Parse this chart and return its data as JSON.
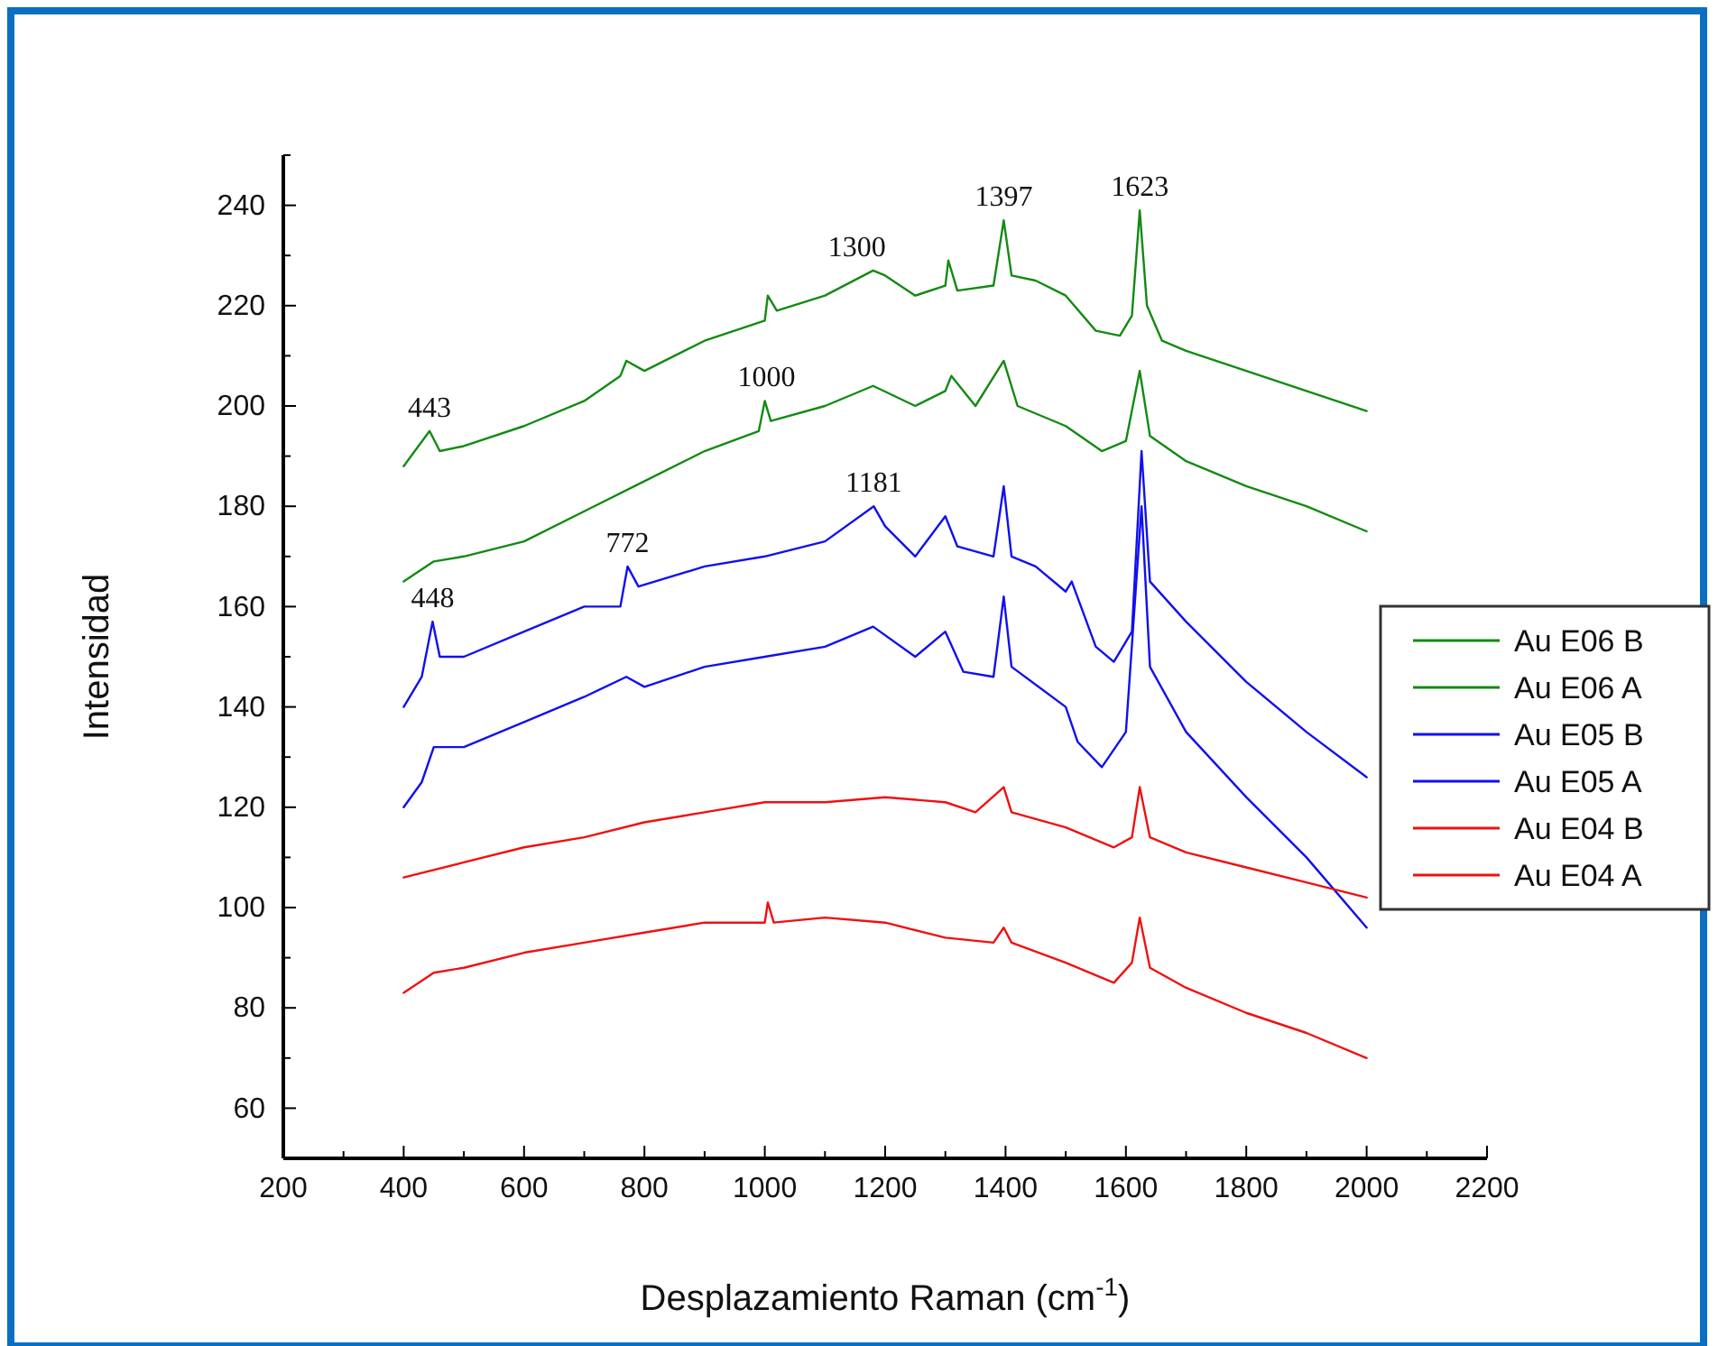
{
  "chart_data": {
    "type": "line",
    "xlabel": "Desplazamiento Raman (cm$^{-1}$)",
    "ylabel": "Intensidad",
    "xlim": [
      200,
      2200
    ],
    "ylim": [
      50,
      250
    ],
    "xticks": [
      200,
      {
        "value": 300,
        "label": null
      },
      400,
      {
        "value": 500,
        "label": null
      },
      600,
      {
        "value": 700,
        "label": null
      },
      800,
      {
        "value": 900,
        "label": null
      },
      1000,
      {
        "value": 1100,
        "label": null
      },
      1200,
      {
        "value": 1300,
        "label": null
      },
      1400,
      {
        "value": 1500,
        "label": null
      },
      1600,
      {
        "value": 1700,
        "label": null
      },
      1800,
      {
        "value": 1900,
        "label": null
      },
      2000,
      {
        "value": 2100,
        "label": null
      },
      2200
    ],
    "yticks": [
      {
        "value": 50,
        "label": null
      },
      60,
      {
        "value": 70,
        "label": null
      },
      80,
      {
        "value": 90,
        "label": null
      },
      100,
      {
        "value": 110,
        "label": null
      },
      120,
      {
        "value": 130,
        "label": null
      },
      140,
      {
        "value": 150,
        "label": null
      },
      160,
      {
        "value": 170,
        "label": null
      },
      180,
      {
        "value": 190,
        "label": null
      },
      200,
      {
        "value": 210,
        "label": null
      },
      220,
      {
        "value": 230,
        "label": null
      },
      240,
      {
        "value": 250,
        "label": null
      }
    ],
    "grid": false,
    "legend": "right",
    "line_style": "solid",
    "marker": "none",
    "series": [
      {
        "name": "Au E06 B",
        "color": "#138a13",
        "x": [
          400,
          443,
          460,
          500,
          600,
          700,
          760,
          770,
          800,
          900,
          1000,
          1005,
          1020,
          1100,
          1180,
          1200,
          1250,
          1300,
          1305,
          1320,
          1380,
          1397,
          1410,
          1450,
          1500,
          1550,
          1590,
          1610,
          1623,
          1635,
          1660,
          1700,
          1800,
          1900,
          2000
        ],
        "values": [
          188,
          195,
          191,
          192,
          196,
          201,
          206,
          209,
          207,
          213,
          217,
          222,
          219,
          222,
          227,
          226,
          222,
          224,
          229,
          223,
          224,
          237,
          226,
          225,
          222,
          215,
          214,
          218,
          239,
          220,
          213,
          211,
          207,
          203,
          199
        ]
      },
      {
        "name": "Au E06 A",
        "color": "#138a13",
        "x": [
          400,
          450,
          500,
          600,
          700,
          800,
          900,
          990,
          1000,
          1010,
          1100,
          1180,
          1250,
          1300,
          1310,
          1350,
          1397,
          1420,
          1500,
          1560,
          1600,
          1623,
          1640,
          1700,
          1800,
          1900,
          2000
        ],
        "values": [
          165,
          169,
          170,
          173,
          179,
          185,
          191,
          195,
          201,
          197,
          200,
          204,
          200,
          203,
          206,
          200,
          209,
          200,
          196,
          191,
          193,
          207,
          194,
          189,
          184,
          180,
          175
        ]
      },
      {
        "name": "Au E05 B",
        "color": "#1010f0",
        "x": [
          400,
          430,
          448,
          460,
          500,
          600,
          700,
          760,
          772,
          790,
          900,
          1000,
          1100,
          1181,
          1200,
          1250,
          1300,
          1320,
          1380,
          1397,
          1410,
          1450,
          1500,
          1510,
          1550,
          1580,
          1610,
          1626,
          1640,
          1700,
          1800,
          1900,
          2000
        ],
        "values": [
          140,
          146,
          157,
          150,
          150,
          155,
          160,
          160,
          168,
          164,
          168,
          170,
          173,
          180,
          176,
          170,
          178,
          172,
          170,
          184,
          170,
          168,
          163,
          165,
          152,
          149,
          155,
          191,
          165,
          157,
          145,
          135,
          126
        ]
      },
      {
        "name": "Au E05 A",
        "color": "#1010f0",
        "x": [
          400,
          430,
          450,
          500,
          600,
          700,
          770,
          800,
          900,
          1000,
          1100,
          1180,
          1250,
          1300,
          1330,
          1380,
          1397,
          1410,
          1500,
          1520,
          1560,
          1600,
          1626,
          1640,
          1700,
          1800,
          1900,
          2000
        ],
        "values": [
          120,
          125,
          132,
          132,
          137,
          142,
          146,
          144,
          148,
          150,
          152,
          156,
          150,
          155,
          147,
          146,
          162,
          148,
          140,
          133,
          128,
          135,
          180,
          148,
          135,
          122,
          110,
          96
        ]
      },
      {
        "name": "Au E04 B",
        "color": "#f01010",
        "x": [
          400,
          500,
          600,
          700,
          800,
          900,
          1000,
          1100,
          1200,
          1300,
          1350,
          1397,
          1410,
          1500,
          1580,
          1610,
          1623,
          1640,
          1700,
          1800,
          1900,
          2000
        ],
        "values": [
          106,
          109,
          112,
          114,
          117,
          119,
          121,
          121,
          122,
          121,
          119,
          124,
          119,
          116,
          112,
          114,
          124,
          114,
          111,
          108,
          105,
          102
        ]
      },
      {
        "name": "Au E04 A",
        "color": "#f01010",
        "x": [
          400,
          450,
          500,
          600,
          700,
          800,
          900,
          1000,
          1005,
          1015,
          1100,
          1200,
          1300,
          1380,
          1397,
          1410,
          1500,
          1580,
          1610,
          1623,
          1640,
          1700,
          1800,
          1900,
          2000
        ],
        "values": [
          83,
          87,
          88,
          91,
          93,
          95,
          97,
          97,
          101,
          97,
          98,
          97,
          94,
          93,
          96,
          93,
          89,
          85,
          89,
          98,
          88,
          84,
          79,
          75,
          70
        ]
      }
    ],
    "annotations": [
      {
        "text": "443",
        "x": 443,
        "y": 195
      },
      {
        "text": "1000",
        "x": 1003,
        "y": 201
      },
      {
        "text": "1300",
        "x": 1153,
        "y": 227
      },
      {
        "text": "1397",
        "x": 1397,
        "y": 237
      },
      {
        "text": "1623",
        "x": 1623,
        "y": 239
      },
      {
        "text": "448",
        "x": 448,
        "y": 157
      },
      {
        "text": "772",
        "x": 772,
        "y": 168
      },
      {
        "text": "1181",
        "x": 1181,
        "y": 180
      }
    ]
  }
}
